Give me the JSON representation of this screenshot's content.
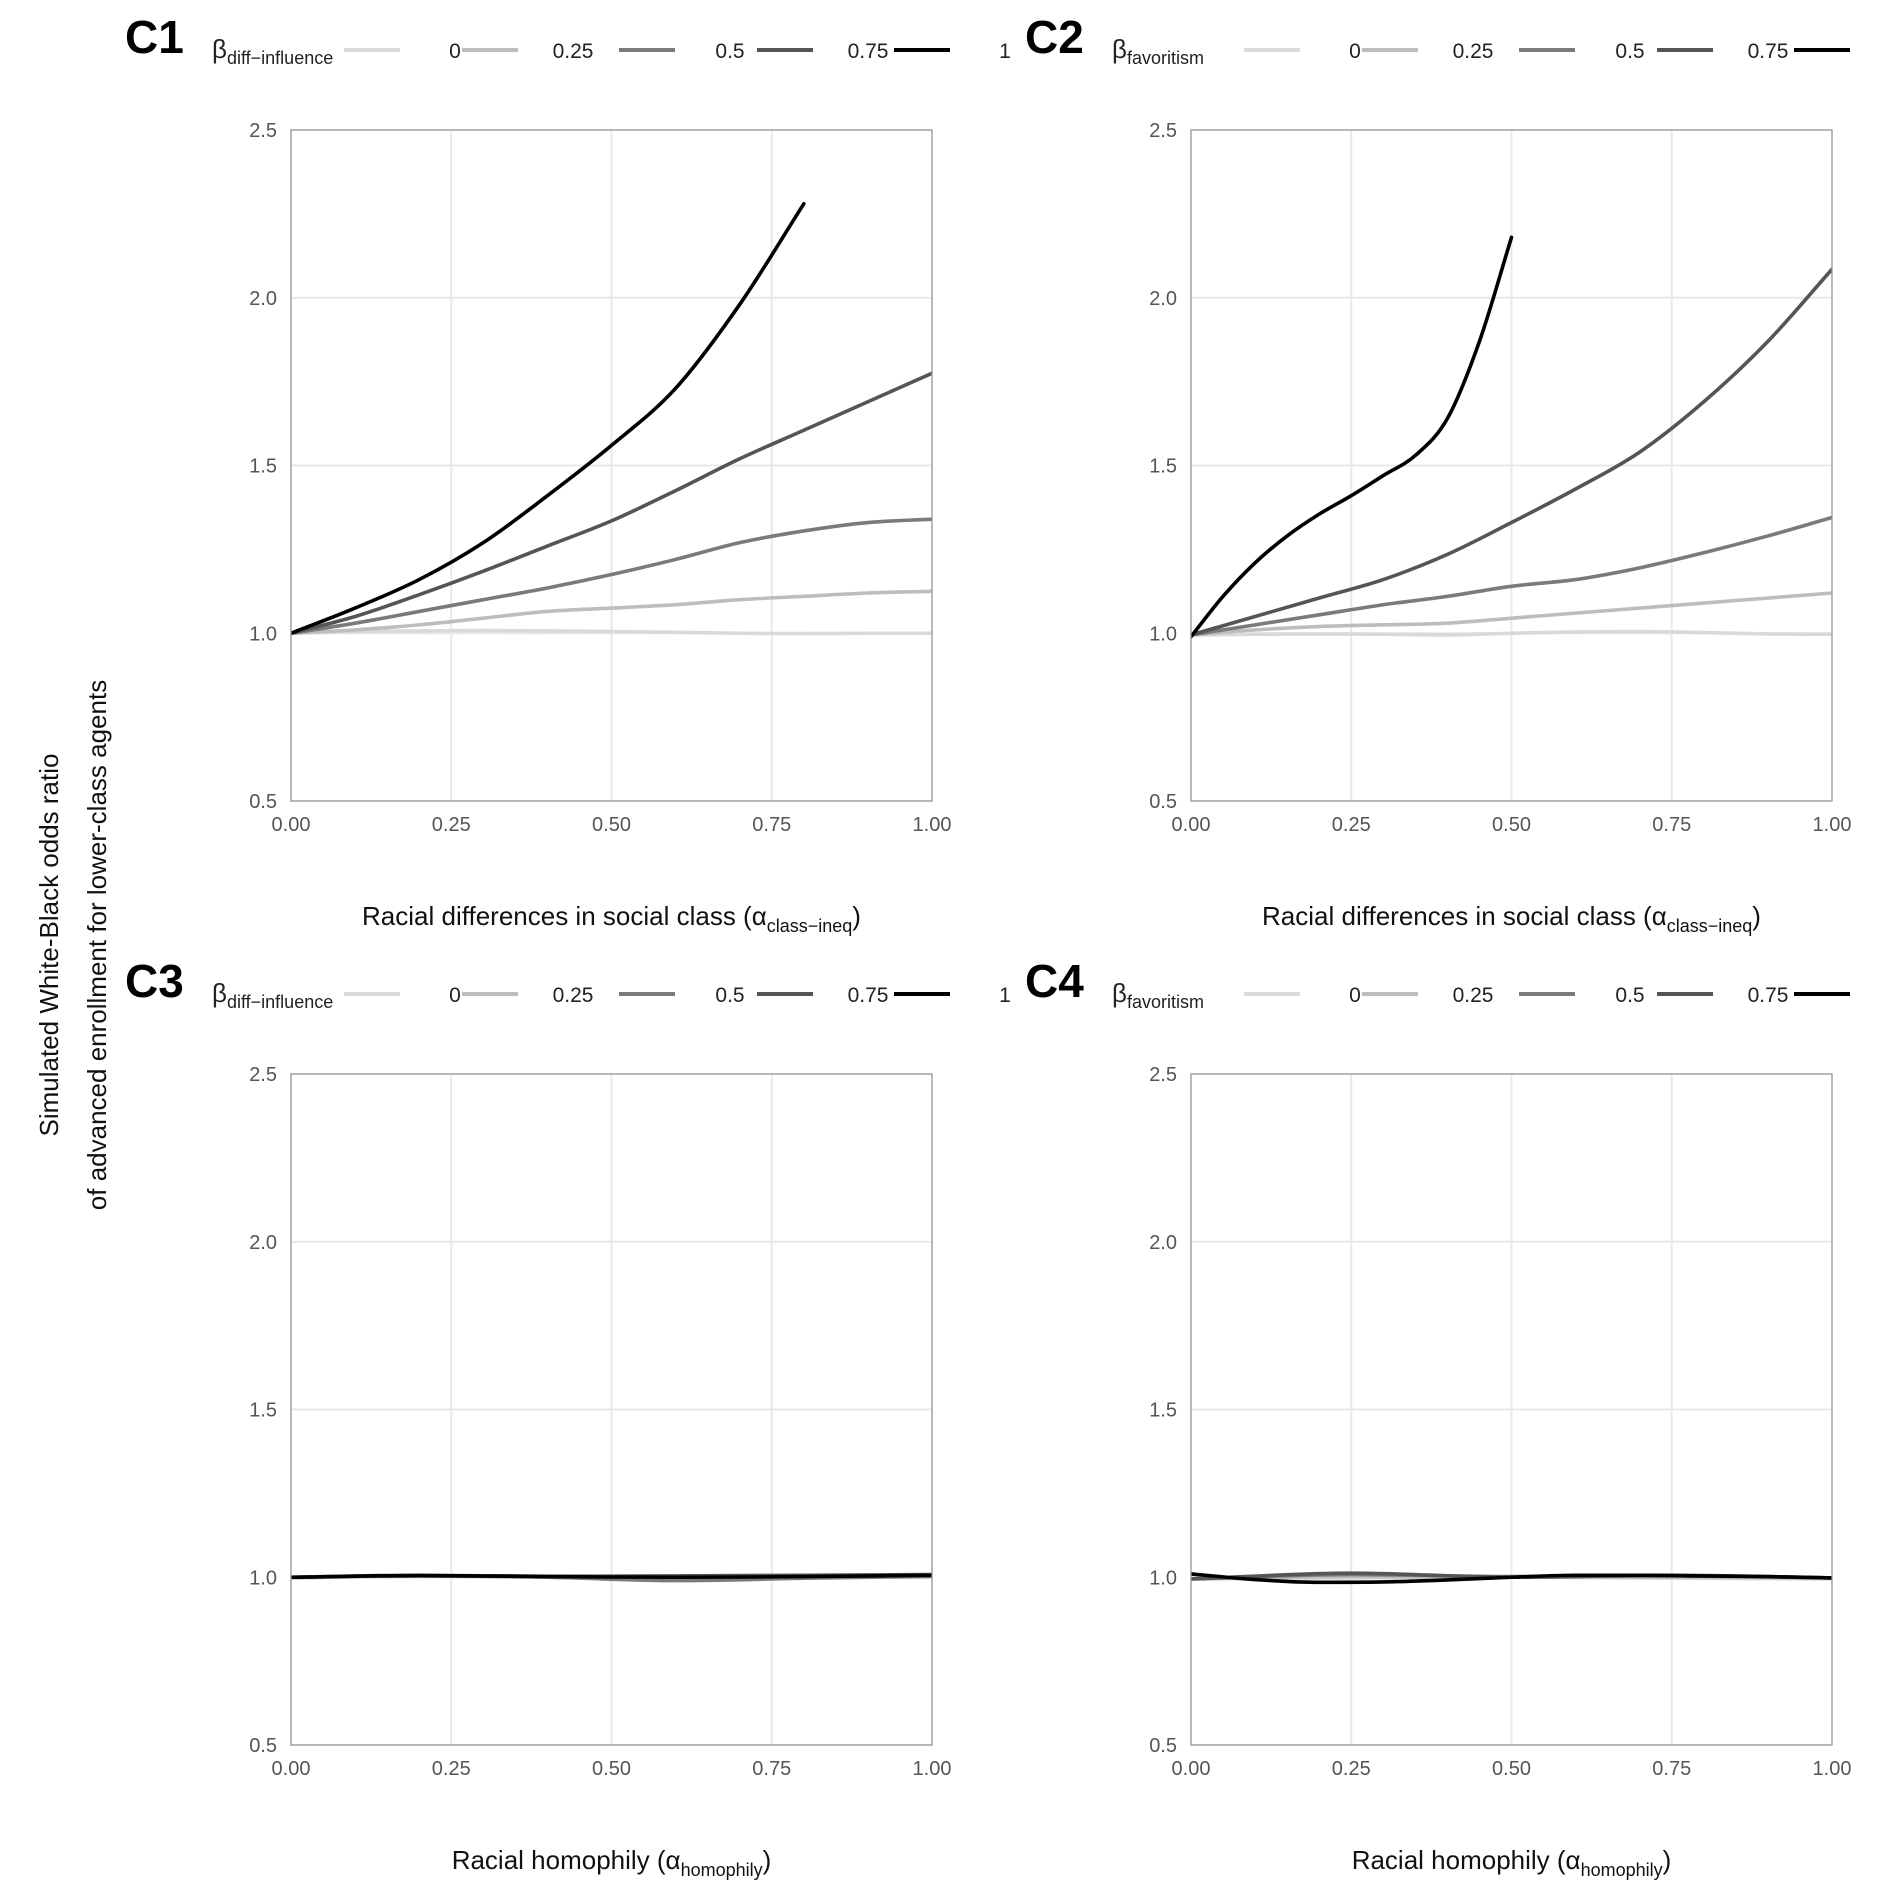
{
  "figure": {
    "y_axis_title_lines": [
      "Simulated White-Black odds ratio",
      "of advanced enrollment for lower-class agents"
    ],
    "legend_levels": [
      "0",
      "0.25",
      "0.5",
      "0.75",
      "1"
    ],
    "level_colors": [
      "#d9d9d9",
      "#bdbdbd",
      "#7a7a7a",
      "#555555",
      "#000000"
    ]
  },
  "chart_data": [
    {
      "panel": "C1",
      "type": "line",
      "legend_symbol": "β",
      "legend_subscript": "diff−influence",
      "xlabel_main": "Racial differences in social class (α",
      "xlabel_sub": "class−ineq",
      "xlabel_end": ")",
      "x_ticks": [
        "0.00",
        "0.25",
        "0.50",
        "0.75",
        "1.00"
      ],
      "y_ticks": [
        "0.5",
        "1.0",
        "1.5",
        "2.0",
        "2.5"
      ],
      "xlim": [
        0,
        1
      ],
      "ylim": [
        0.5,
        2.5
      ],
      "series": [
        {
          "name": "0",
          "x": [
            0,
            0.1,
            0.2,
            0.3,
            0.4,
            0.5,
            0.6,
            0.7,
            0.8,
            0.9,
            1.0
          ],
          "y": [
            1.0,
            1.005,
            1.007,
            1.008,
            1.007,
            1.005,
            1.003,
            1.0,
            0.999,
            1.0,
            1.0
          ]
        },
        {
          "name": "0.25",
          "x": [
            0,
            0.1,
            0.2,
            0.3,
            0.4,
            0.5,
            0.6,
            0.7,
            0.8,
            0.9,
            1.0
          ],
          "y": [
            1.0,
            1.01,
            1.025,
            1.045,
            1.065,
            1.075,
            1.085,
            1.1,
            1.11,
            1.12,
            1.125
          ]
        },
        {
          "name": "0.5",
          "x": [
            0,
            0.1,
            0.2,
            0.3,
            0.4,
            0.5,
            0.6,
            0.7,
            0.8,
            0.9,
            1.0
          ],
          "y": [
            1.0,
            1.03,
            1.065,
            1.1,
            1.135,
            1.175,
            1.22,
            1.27,
            1.305,
            1.33,
            1.34
          ]
        },
        {
          "name": "0.75",
          "x": [
            0,
            0.1,
            0.2,
            0.3,
            0.4,
            0.5,
            0.6,
            0.7,
            0.8,
            0.9,
            1.0
          ],
          "y": [
            1.0,
            1.05,
            1.115,
            1.185,
            1.26,
            1.335,
            1.425,
            1.52,
            1.605,
            1.69,
            1.775
          ]
        },
        {
          "name": "1",
          "x": [
            0,
            0.1,
            0.2,
            0.3,
            0.4,
            0.5,
            0.6,
            0.7,
            0.8
          ],
          "y": [
            1.0,
            1.075,
            1.16,
            1.27,
            1.41,
            1.56,
            1.73,
            1.98,
            2.28
          ]
        }
      ]
    },
    {
      "panel": "C2",
      "type": "line",
      "legend_symbol": "β",
      "legend_subscript": "favoritism",
      "xlabel_main": "Racial differences in social class (α",
      "xlabel_sub": "class−ineq",
      "xlabel_end": ")",
      "x_ticks": [
        "0.00",
        "0.25",
        "0.50",
        "0.75",
        "1.00"
      ],
      "y_ticks": [
        "0.5",
        "1.0",
        "1.5",
        "2.0",
        "2.5"
      ],
      "xlim": [
        0,
        1
      ],
      "ylim": [
        0.5,
        2.5
      ],
      "series": [
        {
          "name": "0",
          "x": [
            0,
            0.1,
            0.2,
            0.3,
            0.4,
            0.5,
            0.6,
            0.7,
            0.8,
            0.9,
            1.0
          ],
          "y": [
            0.995,
            0.997,
            0.998,
            0.997,
            0.995,
            1.0,
            1.004,
            1.005,
            1.002,
            0.998,
            0.997
          ]
        },
        {
          "name": "0.25",
          "x": [
            0,
            0.1,
            0.2,
            0.3,
            0.4,
            0.5,
            0.6,
            0.7,
            0.8,
            0.9,
            1.0
          ],
          "y": [
            0.995,
            1.01,
            1.02,
            1.025,
            1.03,
            1.045,
            1.06,
            1.075,
            1.09,
            1.105,
            1.12
          ]
        },
        {
          "name": "0.5",
          "x": [
            0,
            0.1,
            0.2,
            0.3,
            0.4,
            0.5,
            0.6,
            0.7,
            0.8,
            0.9,
            1.0
          ],
          "y": [
            0.995,
            1.025,
            1.055,
            1.085,
            1.11,
            1.14,
            1.16,
            1.195,
            1.24,
            1.29,
            1.345
          ]
        },
        {
          "name": "0.75",
          "x": [
            0,
            0.1,
            0.2,
            0.3,
            0.4,
            0.5,
            0.6,
            0.7,
            0.8,
            0.9,
            1.0
          ],
          "y": [
            0.995,
            1.05,
            1.105,
            1.16,
            1.235,
            1.33,
            1.43,
            1.54,
            1.69,
            1.87,
            2.085
          ]
        },
        {
          "name": "1",
          "x": [
            0,
            0.05,
            0.1,
            0.15,
            0.2,
            0.25,
            0.3,
            0.35,
            0.4,
            0.45,
            0.5
          ],
          "y": [
            0.99,
            1.11,
            1.21,
            1.29,
            1.355,
            1.41,
            1.47,
            1.53,
            1.64,
            1.87,
            2.18
          ]
        }
      ]
    },
    {
      "panel": "C3",
      "type": "line",
      "legend_symbol": "β",
      "legend_subscript": "diff−influence",
      "xlabel_main": "Racial homophily (α",
      "xlabel_sub": "homophily",
      "xlabel_end": ")",
      "x_ticks": [
        "0.00",
        "0.25",
        "0.50",
        "0.75",
        "1.00"
      ],
      "y_ticks": [
        "0.5",
        "1.0",
        "1.5",
        "2.0",
        "2.5"
      ],
      "xlim": [
        0,
        1
      ],
      "ylim": [
        0.5,
        2.5
      ],
      "series": [
        {
          "name": "0",
          "x": [
            0,
            0.2,
            0.4,
            0.6,
            0.8,
            1.0
          ],
          "y": [
            1.0,
            1.002,
            1.0,
            0.998,
            1.0,
            1.0
          ]
        },
        {
          "name": "0.25",
          "x": [
            0,
            0.2,
            0.4,
            0.6,
            0.8,
            1.0
          ],
          "y": [
            0.998,
            1.003,
            1.002,
            1.0,
            1.0,
            1.002
          ]
        },
        {
          "name": "0.5",
          "x": [
            0,
            0.2,
            0.4,
            0.6,
            0.8,
            1.0
          ],
          "y": [
            1.0,
            1.004,
            1.0,
            0.99,
            0.997,
            1.003
          ]
        },
        {
          "name": "0.75",
          "x": [
            0,
            0.2,
            0.4,
            0.6,
            0.8,
            1.0
          ],
          "y": [
            1.0,
            1.006,
            1.003,
            1.004,
            1.006,
            1.008
          ]
        },
        {
          "name": "1",
          "x": [
            0,
            0.2,
            0.4,
            0.6,
            0.8,
            1.0
          ],
          "y": [
            1.0,
            1.005,
            1.002,
            1.0,
            1.002,
            1.006
          ]
        }
      ]
    },
    {
      "panel": "C4",
      "type": "line",
      "legend_symbol": "β",
      "legend_subscript": "favoritism",
      "xlabel_main": "Racial homophily (α",
      "xlabel_sub": "homophily",
      "xlabel_end": ")",
      "x_ticks": [
        "0.00",
        "0.25",
        "0.50",
        "0.75",
        "1.00"
      ],
      "y_ticks": [
        "0.5",
        "1.0",
        "1.5",
        "2.0",
        "2.5"
      ],
      "xlim": [
        0,
        1
      ],
      "ylim": [
        0.5,
        2.5
      ],
      "series": [
        {
          "name": "0",
          "x": [
            0,
            0.25,
            0.5,
            0.75,
            1.0
          ],
          "y": [
            0.995,
            0.998,
            1.0,
            0.997,
            0.995
          ]
        },
        {
          "name": "0.25",
          "x": [
            0,
            0.25,
            0.5,
            0.75,
            1.0
          ],
          "y": [
            0.995,
            1.002,
            1.0,
            1.0,
            0.998
          ]
        },
        {
          "name": "0.5",
          "x": [
            0,
            0.25,
            0.5,
            0.75,
            1.0
          ],
          "y": [
            0.995,
            1.008,
            1.002,
            1.004,
            0.998
          ]
        },
        {
          "name": "0.75",
          "x": [
            0,
            0.25,
            0.5,
            0.75,
            1.0
          ],
          "y": [
            0.995,
            1.012,
            1.0,
            1.006,
            0.998
          ]
        },
        {
          "name": "1",
          "x": [
            0,
            0.1,
            0.2,
            0.3,
            0.4,
            0.5,
            0.6,
            0.7,
            0.8,
            0.9,
            1.0
          ],
          "y": [
            1.01,
            0.993,
            0.985,
            0.986,
            0.992,
            1.0,
            1.006,
            1.006,
            1.004,
            1.002,
            0.998
          ]
        }
      ]
    }
  ]
}
